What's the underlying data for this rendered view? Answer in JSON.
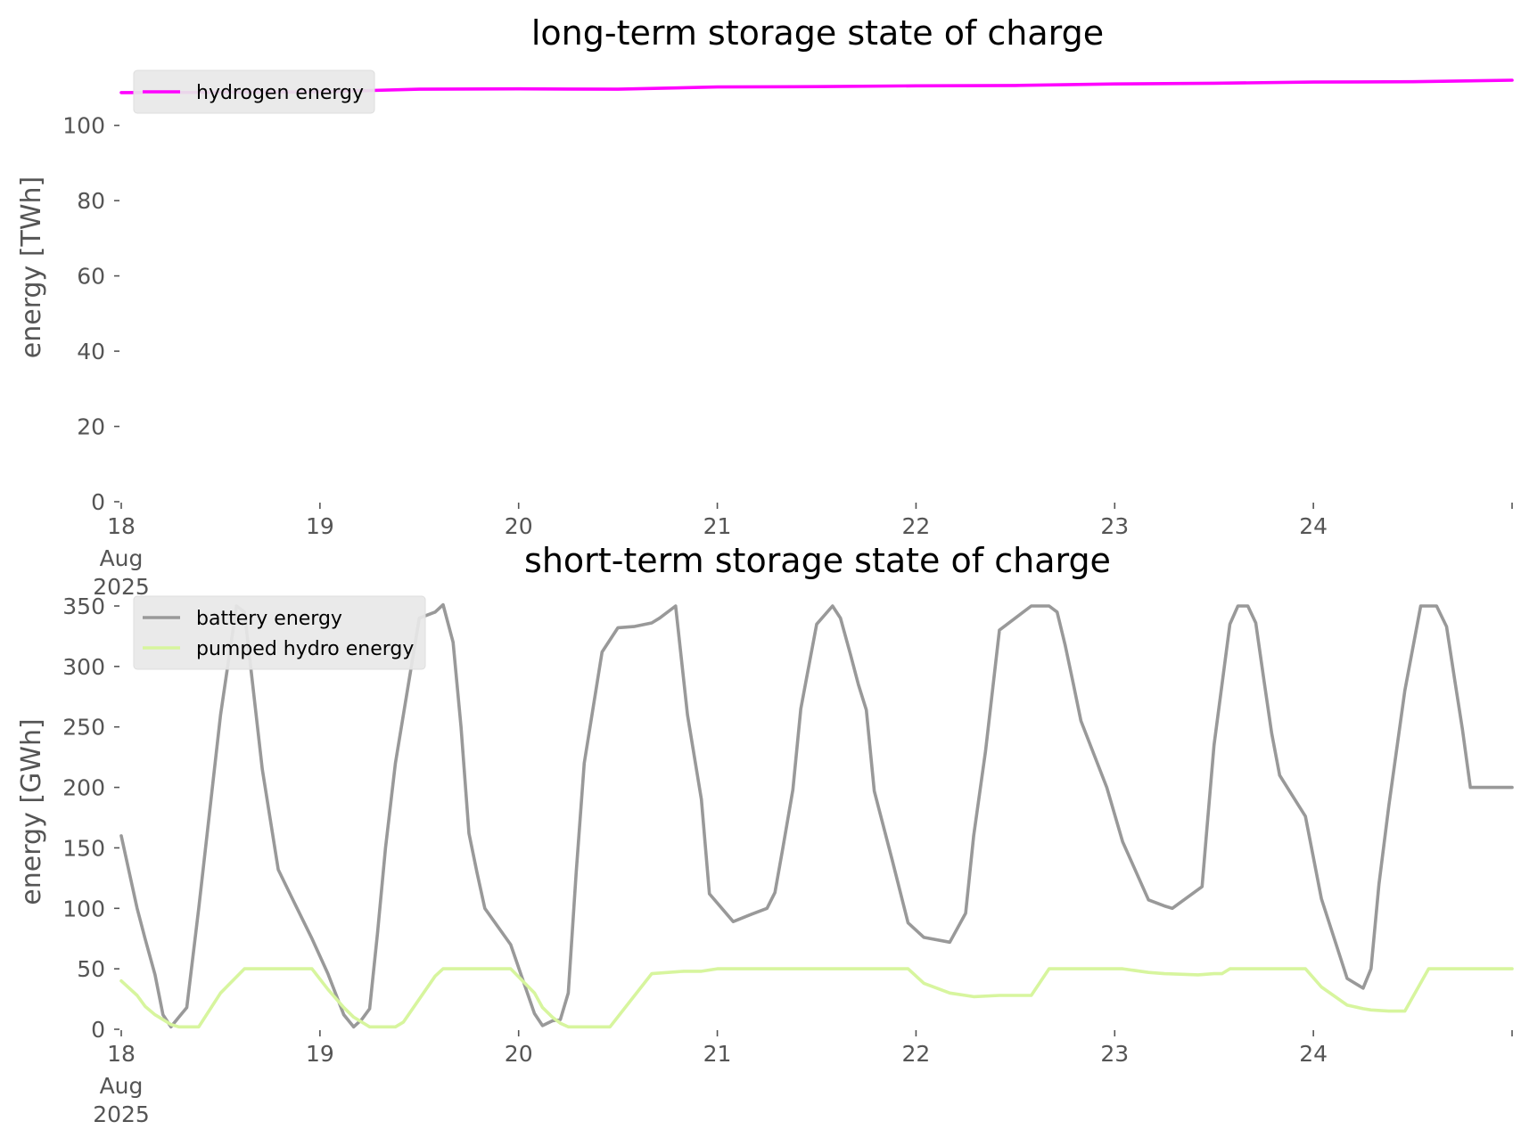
{
  "chart_data": [
    {
      "type": "line",
      "title": "long-term storage state of charge",
      "ylabel": "energy [TWh]",
      "xlabel": "",
      "ylim": [
        0,
        112
      ],
      "yticks": [
        0,
        20,
        40,
        60,
        80,
        100
      ],
      "xticks": [
        {
          "day": 0,
          "label": "18",
          "sub": [
            "Aug",
            "2025"
          ]
        },
        {
          "day": 1,
          "label": "19"
        },
        {
          "day": 2,
          "label": "20"
        },
        {
          "day": 3,
          "label": "21"
        },
        {
          "day": 4,
          "label": "22"
        },
        {
          "day": 5,
          "label": "23"
        },
        {
          "day": 6,
          "label": "24"
        },
        {
          "day": 7,
          "label": ""
        }
      ],
      "xlim": [
        0,
        7
      ],
      "grid": false,
      "legend_position": "top-left",
      "series": [
        {
          "name": "hydrogen energy",
          "color": "#ff00ff",
          "x": [
            0,
            0.5,
            1,
            1.5,
            2,
            2.5,
            3,
            3.5,
            4,
            4.5,
            5,
            5.5,
            6,
            6.5,
            7
          ],
          "y": [
            108.7,
            108.8,
            108.9,
            109.6,
            109.7,
            109.6,
            110.2,
            110.3,
            110.5,
            110.6,
            111.0,
            111.2,
            111.5,
            111.6,
            112.0
          ]
        }
      ]
    },
    {
      "type": "line",
      "title": "short-term storage state of charge",
      "ylabel": "energy [GWh]",
      "xlabel": "",
      "ylim": [
        0,
        350
      ],
      "yticks": [
        0,
        50,
        100,
        150,
        200,
        250,
        300,
        350
      ],
      "xticks": [
        {
          "day": 0,
          "label": "18",
          "sub": [
            "Aug",
            "2025"
          ]
        },
        {
          "day": 1,
          "label": "19"
        },
        {
          "day": 2,
          "label": "20"
        },
        {
          "day": 3,
          "label": "21"
        },
        {
          "day": 4,
          "label": "22"
        },
        {
          "day": 5,
          "label": "23"
        },
        {
          "day": 6,
          "label": "24"
        },
        {
          "day": 7,
          "label": ""
        }
      ],
      "xlim": [
        0,
        7
      ],
      "grid": false,
      "legend_position": "top-left",
      "series": [
        {
          "name": "battery energy",
          "color": "#999999",
          "x": [
            0,
            0.08,
            0.12,
            0.17,
            0.21,
            0.25,
            0.29,
            0.33,
            0.39,
            0.5,
            0.58,
            0.62,
            0.71,
            0.79,
            0.87,
            0.96,
            1.04,
            1.12,
            1.17,
            1.21,
            1.25,
            1.29,
            1.33,
            1.38,
            1.5,
            1.58,
            1.62,
            1.67,
            1.71,
            1.75,
            1.79,
            1.83,
            1.96,
            2.08,
            2.12,
            2.17,
            2.21,
            2.25,
            2.29,
            2.33,
            2.42,
            2.5,
            2.58,
            2.67,
            2.71,
            2.79,
            2.85,
            2.92,
            2.96,
            3.08,
            3.17,
            3.25,
            3.29,
            3.33,
            3.38,
            3.42,
            3.5,
            3.58,
            3.62,
            3.67,
            3.71,
            3.75,
            3.79,
            3.88,
            3.96,
            4.04,
            4.17,
            4.25,
            4.29,
            4.35,
            4.42,
            4.58,
            4.67,
            4.71,
            4.75,
            4.79,
            4.83,
            4.96,
            5.04,
            5.17,
            5.25,
            5.29,
            5.44,
            5.46,
            5.5,
            5.58,
            5.62,
            5.67,
            5.71,
            5.75,
            5.79,
            5.83,
            5.96,
            6.04,
            6.17,
            6.25,
            6.29,
            6.33,
            6.38,
            6.46,
            6.54,
            6.62,
            6.67,
            6.71,
            6.75,
            6.79,
            7.0
          ],
          "y": [
            160,
            100,
            75,
            45,
            12,
            2,
            10,
            18,
            100,
            260,
            350,
            345,
            215,
            132,
            105,
            75,
            46,
            12,
            2,
            8,
            17,
            80,
            150,
            220,
            340,
            345,
            351,
            320,
            250,
            162,
            130,
            100,
            70,
            13,
            3,
            7,
            8,
            30,
            130,
            220,
            312,
            332,
            333,
            336,
            340,
            350,
            260,
            190,
            112,
            89,
            95,
            100,
            113,
            150,
            198,
            265,
            335,
            350,
            340,
            310,
            285,
            264,
            197,
            140,
            88,
            76,
            72,
            96,
            160,
            230,
            330,
            350,
            350,
            345,
            318,
            287,
            255,
            200,
            155,
            107,
            102,
            100,
            118,
            158,
            235,
            335,
            350,
            350,
            336,
            290,
            245,
            210,
            176,
            108,
            42,
            34,
            50,
            120,
            185,
            280,
            350,
            350,
            333,
            290,
            248,
            200,
            200
          ]
        },
        {
          "name": "pumped hydro energy",
          "color": "#d7f59e",
          "x": [
            0,
            0.08,
            0.12,
            0.17,
            0.21,
            0.25,
            0.29,
            0.33,
            0.39,
            0.5,
            0.62,
            0.79,
            0.96,
            1.04,
            1.12,
            1.17,
            1.21,
            1.25,
            1.33,
            1.38,
            1.42,
            1.58,
            1.62,
            1.71,
            1.79,
            1.96,
            2.08,
            2.12,
            2.17,
            2.21,
            2.25,
            2.29,
            2.33,
            2.46,
            2.67,
            2.83,
            2.92,
            2.96,
            3.0,
            3.5,
            3.96,
            4.04,
            4.17,
            4.29,
            4.42,
            4.46,
            4.58,
            4.67,
            4.96,
            5.04,
            5.17,
            5.25,
            5.42,
            5.5,
            5.54,
            5.58,
            5.62,
            5.96,
            6.04,
            6.17,
            6.25,
            6.29,
            6.38,
            6.46,
            6.58,
            6.75,
            7.0
          ],
          "y": [
            40,
            28,
            19,
            12,
            8,
            4,
            2,
            2,
            2,
            30,
            50,
            50,
            50,
            33,
            18,
            10,
            6,
            2,
            2,
            2,
            6,
            44,
            50,
            50,
            50,
            50,
            30,
            18,
            10,
            5,
            2,
            2,
            2,
            2,
            46,
            48,
            48,
            49,
            50,
            50,
            50,
            38,
            30,
            27,
            28,
            28,
            28,
            50,
            50,
            50,
            47,
            46,
            45,
            46,
            46,
            50,
            50,
            50,
            35,
            20,
            17,
            16,
            15,
            15,
            50,
            50,
            50
          ]
        }
      ]
    }
  ]
}
